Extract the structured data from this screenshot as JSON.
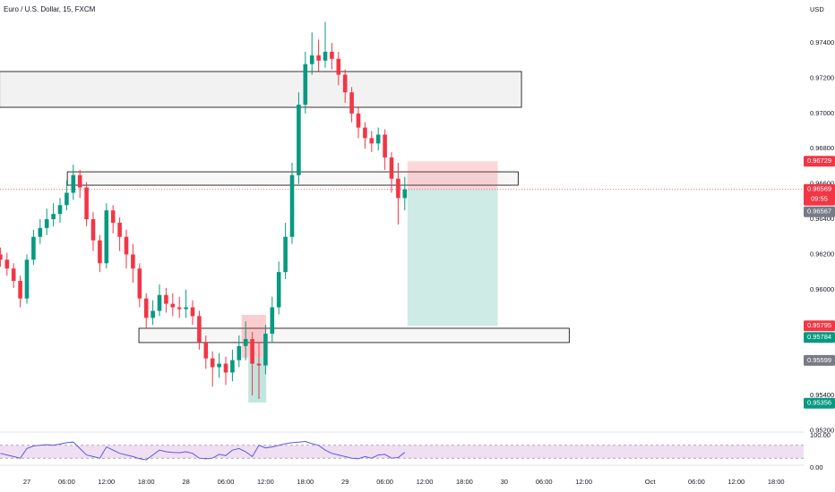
{
  "chart_data": {
    "type": "candlestick",
    "title": "Euro / U.S. Dollar, 15, FXCM",
    "currency": "USD",
    "up_color": "#089981",
    "down_color": "#f23645",
    "ylim": [
      0.95192,
      0.97644
    ],
    "xlim": [
      -4.054,
      117.16
    ],
    "yticks": [
      {
        "value": 0.974,
        "label": "0.97400"
      },
      {
        "value": 0.972,
        "label": "0.97200"
      },
      {
        "value": 0.97,
        "label": "0.97000"
      },
      {
        "value": 0.968,
        "label": "0.96800"
      },
      {
        "value": 0.966,
        "label": "0.96600"
      },
      {
        "value": 0.964,
        "label": "0.96400"
      },
      {
        "value": 0.962,
        "label": "0.96200"
      },
      {
        "value": 0.96,
        "label": "0.96000"
      },
      {
        "value": 0.958,
        "label": "0.95800"
      },
      {
        "value": 0.956,
        "label": "0.95600"
      },
      {
        "value": 0.954,
        "label": "0.95400"
      },
      {
        "value": 0.952,
        "label": "0.95200"
      }
    ],
    "xticks": [
      {
        "value": 0,
        "label": "27"
      },
      {
        "value": 6,
        "label": "06:00"
      },
      {
        "value": 12,
        "label": "12:00"
      },
      {
        "value": 18,
        "label": "18:00"
      },
      {
        "value": 24,
        "label": "28"
      },
      {
        "value": 30,
        "label": "06:00"
      },
      {
        "value": 36,
        "label": "12:00"
      },
      {
        "value": 42,
        "label": "18:00"
      },
      {
        "value": 48,
        "label": "29"
      },
      {
        "value": 54,
        "label": "06:00"
      },
      {
        "value": 60,
        "label": "12:00"
      },
      {
        "value": 66,
        "label": "18:00"
      },
      {
        "value": 72,
        "label": "30"
      },
      {
        "value": 78,
        "label": "06:00"
      },
      {
        "value": 84,
        "label": "12:00"
      },
      {
        "value": 94,
        "label": "Oct"
      },
      {
        "value": 101,
        "label": "06:00"
      },
      {
        "value": 107,
        "label": "12:00"
      },
      {
        "value": 113,
        "label": "18:00"
      }
    ],
    "x": [
      -4,
      -3,
      -2,
      -1,
      0,
      1,
      2,
      3,
      4,
      5,
      6,
      7,
      8,
      9,
      10,
      11,
      12,
      13,
      14,
      15,
      16,
      17,
      18,
      19,
      20,
      21,
      22,
      23,
      24,
      25,
      26,
      27,
      28,
      29,
      30,
      31,
      32,
      33,
      34,
      35,
      36,
      37,
      38,
      39,
      40,
      41,
      42,
      43,
      44,
      45,
      46,
      47,
      48,
      49,
      50,
      51,
      52,
      53,
      54,
      55,
      56,
      57
    ],
    "open": [
      0.962,
      0.9617,
      0.9612,
      0.9605,
      0.9595,
      0.9617,
      0.963,
      0.9635,
      0.964,
      0.9643,
      0.9648,
      0.9655,
      0.9665,
      0.9658,
      0.964,
      0.9628,
      0.9615,
      0.9645,
      0.9638,
      0.963,
      0.962,
      0.9612,
      0.9595,
      0.9584,
      0.9588,
      0.9597,
      0.9592,
      0.959,
      0.9589,
      0.959,
      0.9585,
      0.957,
      0.9561,
      0.9556,
      0.9558,
      0.9553,
      0.956,
      0.9568,
      0.9572,
      0.9558,
      0.9557,
      0.9575,
      0.959,
      0.961,
      0.963,
      0.9665,
      0.9705,
      0.9728,
      0.9733,
      0.973,
      0.9735,
      0.9731,
      0.9722,
      0.9712,
      0.97,
      0.9692,
      0.9686,
      0.9683,
      0.9688,
      0.9675,
      0.9663,
      0.9652
    ],
    "high": [
      0.9624,
      0.9621,
      0.9615,
      0.9608,
      0.962,
      0.9634,
      0.964,
      0.9646,
      0.9649,
      0.9652,
      0.9662,
      0.9671,
      0.9668,
      0.9661,
      0.9644,
      0.9631,
      0.9649,
      0.9648,
      0.9641,
      0.9634,
      0.9626,
      0.9615,
      0.9598,
      0.9594,
      0.9603,
      0.9601,
      0.9598,
      0.9596,
      0.96,
      0.9594,
      0.9588,
      0.9574,
      0.9565,
      0.9564,
      0.9562,
      0.9566,
      0.9574,
      0.9582,
      0.9576,
      0.957,
      0.958,
      0.9596,
      0.9616,
      0.9638,
      0.9672,
      0.9712,
      0.9735,
      0.9746,
      0.9742,
      0.9752,
      0.974,
      0.9735,
      0.9725,
      0.9715,
      0.9704,
      0.9695,
      0.969,
      0.9692,
      0.9691,
      0.9678,
      0.9672,
      0.9664
    ],
    "low": [
      0.9613,
      0.9608,
      0.9601,
      0.959,
      0.9592,
      0.9614,
      0.9626,
      0.9631,
      0.9636,
      0.9638,
      0.9645,
      0.9651,
      0.9652,
      0.9636,
      0.9622,
      0.961,
      0.9612,
      0.9632,
      0.9622,
      0.9612,
      0.9604,
      0.959,
      0.9578,
      0.958,
      0.9585,
      0.9587,
      0.9585,
      0.9584,
      0.9584,
      0.958,
      0.9566,
      0.9555,
      0.9545,
      0.955,
      0.9546,
      0.9548,
      0.9556,
      0.956,
      0.954,
      0.9538,
      0.9552,
      0.957,
      0.9586,
      0.9606,
      0.9626,
      0.966,
      0.97,
      0.9722,
      0.9724,
      0.9726,
      0.9725,
      0.9716,
      0.9706,
      0.9695,
      0.9686,
      0.968,
      0.9678,
      0.9679,
      0.9668,
      0.9655,
      0.9637,
      0.9645
    ],
    "close": [
      0.9617,
      0.9612,
      0.9605,
      0.9595,
      0.9617,
      0.963,
      0.9635,
      0.964,
      0.9643,
      0.9648,
      0.9655,
      0.9665,
      0.9658,
      0.964,
      0.9628,
      0.9615,
      0.9645,
      0.9638,
      0.963,
      0.962,
      0.9612,
      0.9595,
      0.9584,
      0.9588,
      0.9597,
      0.9592,
      0.959,
      0.9589,
      0.959,
      0.9585,
      0.957,
      0.9561,
      0.9556,
      0.9558,
      0.9553,
      0.956,
      0.9568,
      0.9572,
      0.9558,
      0.9557,
      0.9575,
      0.959,
      0.961,
      0.963,
      0.9665,
      0.9705,
      0.9728,
      0.9733,
      0.973,
      0.9735,
      0.9731,
      0.9722,
      0.9712,
      0.97,
      0.9692,
      0.9686,
      0.9683,
      0.9688,
      0.9675,
      0.9663,
      0.9652,
      0.9657
    ],
    "zones": [
      {
        "x": [
          -4.1,
          74.6
        ],
        "y": [
          0.97035,
          0.97238
        ],
        "fill": "#f2f2f2",
        "stroke": "#000000"
      },
      {
        "x": [
          6.1,
          74.1
        ],
        "y": [
          0.96593,
          0.96669
        ],
        "fill": "#f7f7f7",
        "stroke": "#000000"
      },
      {
        "x": [
          16.9,
          81.8
        ],
        "y": [
          0.957,
          0.95781
        ],
        "fill": "#f7f7f7",
        "stroke": "#000000"
      },
      {
        "x": [
          32.4,
          36.1
        ],
        "y": [
          0.95614,
          0.95857
        ],
        "fill": "rgba(242,54,69,0.25)",
        "stroke": "none"
      },
      {
        "x": [
          33.4,
          36.1
        ],
        "y": [
          0.9536,
          0.95614
        ],
        "fill": "rgba(8,153,129,0.25)",
        "stroke": "none"
      }
    ],
    "position": {
      "x": [
        57.4,
        71
      ],
      "entry": 0.9657,
      "stop": 0.96729,
      "target": 0.95795
    },
    "price_labels": [
      {
        "value": 0.96569,
        "color": "#f23645",
        "countdown": "09:55"
      },
      {
        "value": 0.96567,
        "color": "#787b86"
      },
      {
        "value": 0.95784,
        "color": "#089981"
      },
      {
        "value": 0.95599,
        "color": "#787b86"
      },
      {
        "value": 0.95356,
        "color": "#089981"
      }
    ],
    "rsi": {
      "color": "#5b5bd6",
      "ylim": [
        0,
        100
      ],
      "band": [
        30,
        70
      ],
      "yticks": [
        {
          "value": 100,
          "label": "100.00"
        },
        {
          "value": 0,
          "label": "0.00"
        }
      ],
      "values": [
        45,
        40,
        35,
        30,
        60,
        68,
        70,
        72,
        70,
        74,
        78,
        80,
        60,
        40,
        35,
        30,
        65,
        55,
        45,
        40,
        35,
        28,
        25,
        40,
        55,
        50,
        48,
        47,
        50,
        45,
        30,
        28,
        30,
        42,
        38,
        55,
        60,
        50,
        35,
        70,
        62,
        65,
        70,
        75,
        78,
        80,
        82,
        75,
        70,
        55,
        45,
        40,
        35,
        30,
        28,
        35,
        30,
        40,
        42,
        30,
        32,
        48
      ]
    }
  }
}
